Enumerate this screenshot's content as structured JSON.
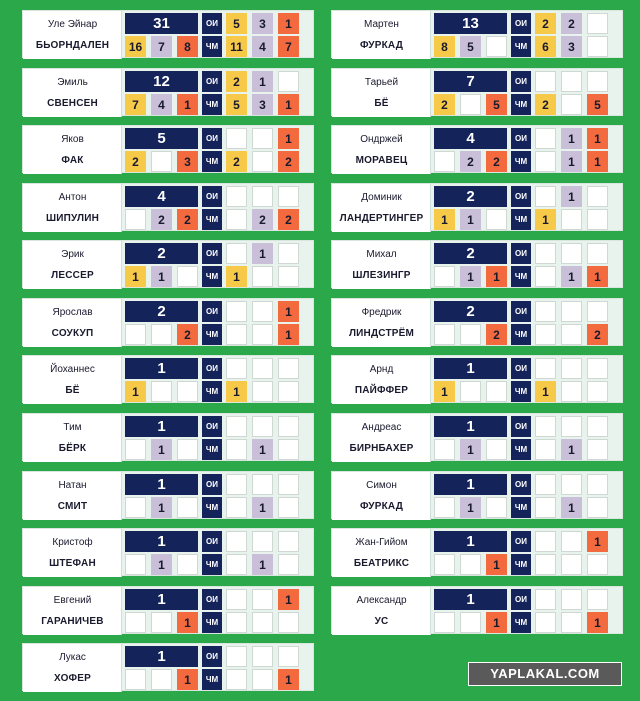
{
  "labels": {
    "olympics": "ОИ",
    "worlds": "ЧМ"
  },
  "watermark": "YAPLAKAL.COM",
  "colors": {
    "background": "#2aa84a",
    "header": "#14245a",
    "gold": "#f7c948",
    "silver": "#c9bfd9",
    "bronze": "#f26a3d"
  },
  "athletes": [
    {
      "first": "Уле Эйнар",
      "last": "БЬОРНДАЛЕН",
      "total": "31",
      "oi": [
        "5",
        "3",
        "1"
      ],
      "chm": [
        "11",
        "4",
        "7"
      ],
      "sub": [
        "16",
        "7",
        "8"
      ]
    },
    {
      "first": "Мартен",
      "last": "ФУРКАД",
      "total": "13",
      "oi": [
        "2",
        "2",
        ""
      ],
      "chm": [
        "6",
        "3",
        ""
      ],
      "sub": [
        "8",
        "5",
        ""
      ]
    },
    {
      "first": "Эмиль",
      "last": "СВЕНСЕН",
      "total": "12",
      "oi": [
        "2",
        "1",
        ""
      ],
      "chm": [
        "5",
        "3",
        "1"
      ],
      "sub": [
        "7",
        "4",
        "1"
      ]
    },
    {
      "first": "Тарьей",
      "last": "БЁ",
      "total": "7",
      "oi": [
        "",
        "",
        ""
      ],
      "chm": [
        "2",
        "",
        "5"
      ],
      "sub": [
        "2",
        "",
        "5"
      ]
    },
    {
      "first": "Яков",
      "last": "ФАК",
      "total": "5",
      "oi": [
        "",
        "",
        "1"
      ],
      "chm": [
        "2",
        "",
        "2"
      ],
      "sub": [
        "2",
        "",
        "3"
      ]
    },
    {
      "first": "Ондржей",
      "last": "МОРАВЕЦ",
      "total": "4",
      "oi": [
        "",
        "1",
        "1"
      ],
      "chm": [
        "",
        "1",
        "1"
      ],
      "sub": [
        "",
        "2",
        "2"
      ]
    },
    {
      "first": "Антон",
      "last": "ШИПУЛИН",
      "total": "4",
      "oi": [
        "",
        "",
        ""
      ],
      "chm": [
        "",
        "2",
        "2"
      ],
      "sub": [
        "",
        "2",
        "2"
      ]
    },
    {
      "first": "Доминик",
      "last": "ЛАНДЕРТИНГЕР",
      "total": "2",
      "oi": [
        "",
        "1",
        ""
      ],
      "chm": [
        "1",
        "",
        ""
      ],
      "sub": [
        "1",
        "1",
        ""
      ]
    },
    {
      "first": "Эрик",
      "last": "ЛЕССЕР",
      "total": "2",
      "oi": [
        "",
        "1",
        ""
      ],
      "chm": [
        "1",
        "",
        ""
      ],
      "sub": [
        "1",
        "1",
        ""
      ]
    },
    {
      "first": "Михал",
      "last": "ШЛЕЗИНГР",
      "total": "2",
      "oi": [
        "",
        "",
        ""
      ],
      "chm": [
        "",
        "1",
        "1"
      ],
      "sub": [
        "",
        "1",
        "1"
      ]
    },
    {
      "first": "Ярослав",
      "last": "СОУКУП",
      "total": "2",
      "oi": [
        "",
        "",
        "1"
      ],
      "chm": [
        "",
        "",
        "1"
      ],
      "sub": [
        "",
        "",
        "2"
      ]
    },
    {
      "first": "Фредрик",
      "last": "ЛИНДСТРЁМ",
      "total": "2",
      "oi": [
        "",
        "",
        ""
      ],
      "chm": [
        "",
        "",
        "2"
      ],
      "sub": [
        "",
        "",
        "2"
      ]
    },
    {
      "first": "Йоханнес",
      "last": "БЁ",
      "total": "1",
      "oi": [
        "",
        "",
        ""
      ],
      "chm": [
        "1",
        "",
        ""
      ],
      "sub": [
        "1",
        "",
        ""
      ]
    },
    {
      "first": "Арнд",
      "last": "ПАЙФФЕР",
      "total": "1",
      "oi": [
        "",
        "",
        ""
      ],
      "chm": [
        "1",
        "",
        ""
      ],
      "sub": [
        "1",
        "",
        ""
      ]
    },
    {
      "first": "Тим",
      "last": "БЁРК",
      "total": "1",
      "oi": [
        "",
        "",
        ""
      ],
      "chm": [
        "",
        "1",
        ""
      ],
      "sub": [
        "",
        "1",
        ""
      ]
    },
    {
      "first": "Андреас",
      "last": "БИРНБАХЕР",
      "total": "1",
      "oi": [
        "",
        "",
        ""
      ],
      "chm": [
        "",
        "1",
        ""
      ],
      "sub": [
        "",
        "1",
        ""
      ]
    },
    {
      "first": "Натан",
      "last": "СМИТ",
      "total": "1",
      "oi": [
        "",
        "",
        ""
      ],
      "chm": [
        "",
        "1",
        ""
      ],
      "sub": [
        "",
        "1",
        ""
      ]
    },
    {
      "first": "Симон",
      "last": "ФУРКАД",
      "total": "1",
      "oi": [
        "",
        "",
        ""
      ],
      "chm": [
        "",
        "1",
        ""
      ],
      "sub": [
        "",
        "1",
        ""
      ]
    },
    {
      "first": "Кристоф",
      "last": "ШТЕФАН",
      "total": "1",
      "oi": [
        "",
        "",
        ""
      ],
      "chm": [
        "",
        "1",
        ""
      ],
      "sub": [
        "",
        "1",
        ""
      ]
    },
    {
      "first": "Жан-Гийом",
      "last": "БЕАТРИКС",
      "total": "1",
      "oi": [
        "",
        "",
        "1"
      ],
      "chm": [
        "",
        "",
        ""
      ],
      "sub": [
        "",
        "",
        "1"
      ]
    },
    {
      "first": "Евгений",
      "last": "ГАРАНИЧЕВ",
      "total": "1",
      "oi": [
        "",
        "",
        "1"
      ],
      "chm": [
        "",
        "",
        ""
      ],
      "sub": [
        "",
        "",
        "1"
      ]
    },
    {
      "first": "Александр",
      "last": "УС",
      "total": "1",
      "oi": [
        "",
        "",
        ""
      ],
      "chm": [
        "",
        "",
        "1"
      ],
      "sub": [
        "",
        "",
        "1"
      ]
    },
    {
      "first": "Лукас",
      "last": "ХОФЕР",
      "total": "1",
      "oi": [
        "",
        "",
        ""
      ],
      "chm": [
        "",
        "",
        "1"
      ],
      "sub": [
        "",
        "",
        "1"
      ]
    }
  ]
}
